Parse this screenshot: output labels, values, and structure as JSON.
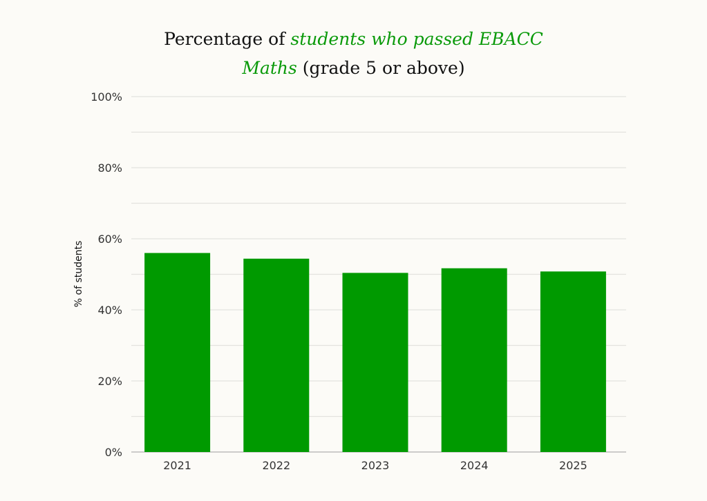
{
  "chart_data": {
    "type": "bar",
    "title_parts": [
      "Percentage of ",
      "students who passed EBACC",
      "Maths",
      " (grade 5 or above)"
    ],
    "categories": [
      "2021",
      "2022",
      "2023",
      "2024",
      "2025"
    ],
    "values": [
      56.0,
      54.4,
      50.4,
      51.7,
      50.8
    ],
    "xlabel": "",
    "ylabel": "% of students",
    "ylim": [
      0,
      100
    ],
    "yticks": [
      0,
      20,
      40,
      60,
      80,
      100
    ],
    "ytick_labels": [
      "0%",
      "20%",
      "40%",
      "60%",
      "80%",
      "100%"
    ],
    "grid": true,
    "bar_color": "#009a00"
  }
}
